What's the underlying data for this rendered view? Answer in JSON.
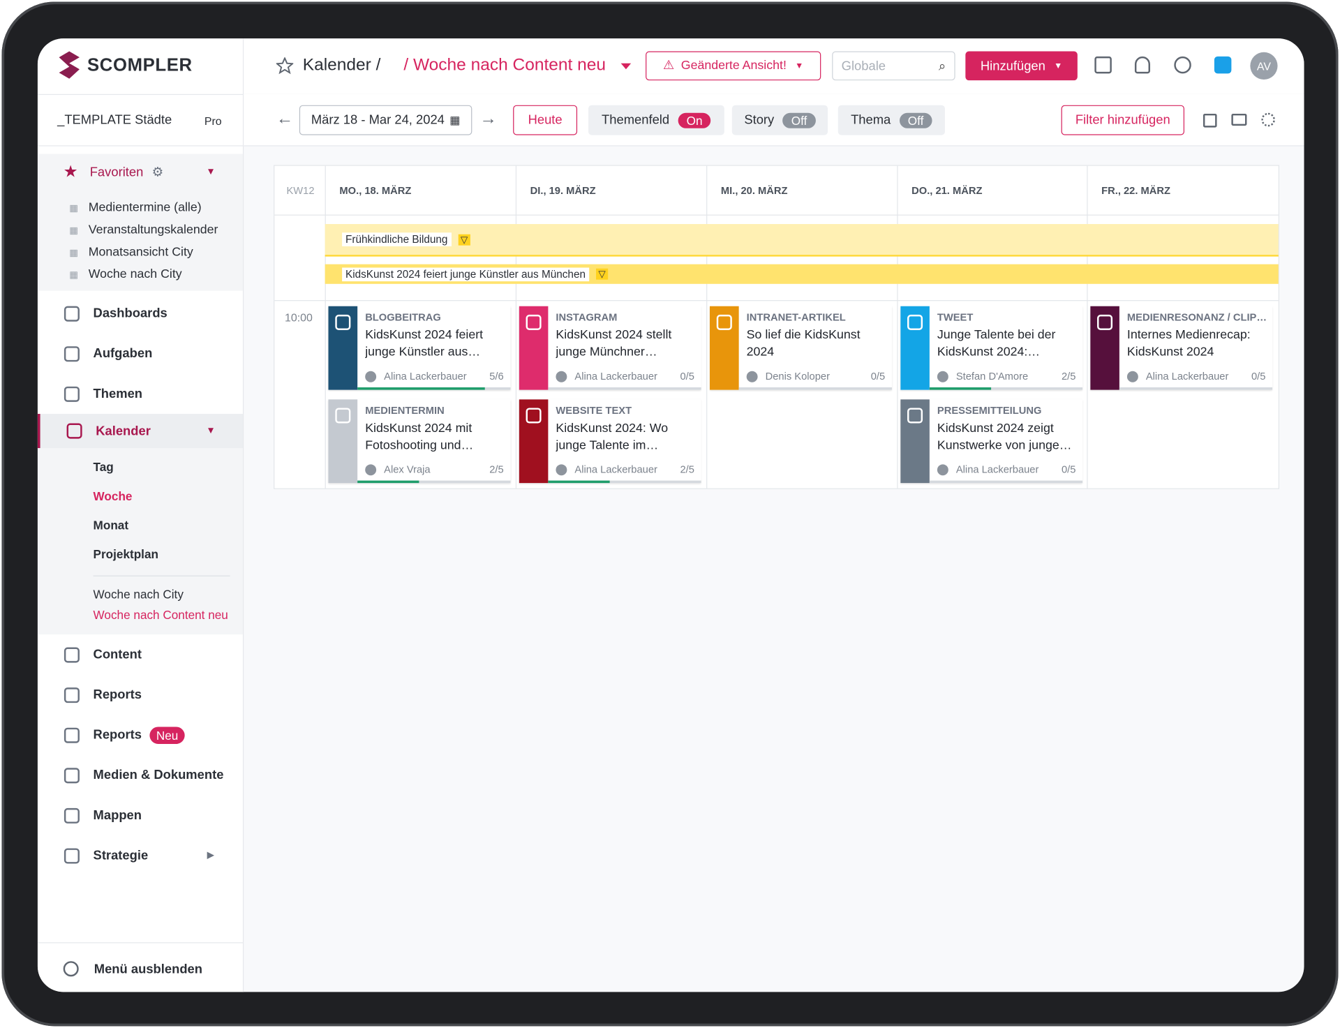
{
  "logo": "SCOMPLER",
  "header": {
    "breadcrumb": "Kalender /",
    "view": "/ Woche nach Content neu",
    "changed_view": "Geänderte Ansicht!",
    "search_placeholder": "Globale",
    "add_button": "Hinzufügen",
    "avatar": "AV"
  },
  "workspace": {
    "name": "_TEMPLATE Städte",
    "plan": "Pro"
  },
  "sidebar": {
    "favorites": {
      "label": "Favoriten",
      "items": [
        "Medientermine (alle)",
        "Veranstaltungskalender",
        "Monatsansicht City",
        "Woche nach City"
      ]
    },
    "nav_top": [
      "Dashboards",
      "Aufgaben",
      "Themen"
    ],
    "calendar": {
      "label": "Kalender",
      "views": [
        "Tag",
        "Woche",
        "Monat",
        "Projektplan"
      ],
      "saved": [
        "Woche nach City",
        "Woche nach Content neu"
      ]
    },
    "nav_bottom": [
      {
        "label": "Content"
      },
      {
        "label": "Reports"
      },
      {
        "label": "Reports",
        "badge": "Neu"
      },
      {
        "label": "Medien & Dokumente"
      },
      {
        "label": "Mappen"
      },
      {
        "label": "Strategie"
      }
    ],
    "hide_menu": "Menü ausblenden"
  },
  "toolbar": {
    "range": "März 18 - Mar 24, 2024",
    "today": "Heute",
    "toggles": [
      {
        "label": "Themenfeld",
        "state": "On"
      },
      {
        "label": "Story",
        "state": "Off"
      },
      {
        "label": "Thema",
        "state": "Off"
      }
    ],
    "filter": "Filter hinzufügen"
  },
  "calendar": {
    "week": "KW12",
    "time": "10:00",
    "banners": [
      {
        "label": "Frühkindliche Bildung",
        "color": "#fff0b3"
      },
      {
        "label": "KidsKunst 2024 feiert junge Künstler aus München",
        "color": "#ffe36e"
      }
    ],
    "columns": [
      {
        "label": "MO., 18. MÄRZ",
        "cards": [
          {
            "type": "BLOGBEITRAG",
            "title": "KidsKunst 2024 feiert junge Künstler aus…",
            "author": "Alina Lackerbauer",
            "progress": "5/6",
            "color": "#1d5275"
          },
          {
            "type": "MEDIENTERMIN",
            "title": "KidsKunst 2024 mit Fotoshooting und…",
            "author": "Alex Vraja",
            "progress": "2/5",
            "color": "#c4c9d0"
          }
        ]
      },
      {
        "label": "DI., 19. MÄRZ",
        "cards": [
          {
            "type": "INSTAGRAM",
            "title": "KidsKunst 2024 stellt junge Münchner…",
            "author": "Alina Lackerbauer",
            "progress": "0/5",
            "color": "#de2c6c"
          },
          {
            "type": "WEBSITE TEXT",
            "title": "KidsKunst 2024: Wo junge Talente im…",
            "author": "Alina Lackerbauer",
            "progress": "2/5",
            "color": "#a0101f"
          }
        ]
      },
      {
        "label": "MI., 20. MÄRZ",
        "cards": [
          {
            "type": "INTRANET-ARTIKEL",
            "title": "So lief die KidsKunst 2024",
            "author": "Denis Koloper",
            "progress": "0/5",
            "color": "#e8950b"
          }
        ]
      },
      {
        "label": "DO., 21. MÄRZ",
        "cards": [
          {
            "type": "TWEET",
            "title": "Junge Talente bei der KidsKunst 2024:…",
            "author": "Stefan D'Amore",
            "progress": "2/5",
            "color": "#13a5e6"
          },
          {
            "type": "PRESSEMITTEILUNG",
            "title": "KidsKunst 2024 zeigt Kunstwerke von junge…",
            "author": "Alina Lackerbauer",
            "progress": "0/5",
            "color": "#6b7987"
          }
        ]
      },
      {
        "label": "FR., 22. MÄRZ",
        "cards": [
          {
            "type": "MEDIENRESONANZ / CLIP…",
            "title": "Internes Medienrecap: KidsKunst 2024",
            "author": "Alina Lackerbauer",
            "progress": "0/5",
            "color": "#56103c"
          }
        ]
      }
    ]
  }
}
